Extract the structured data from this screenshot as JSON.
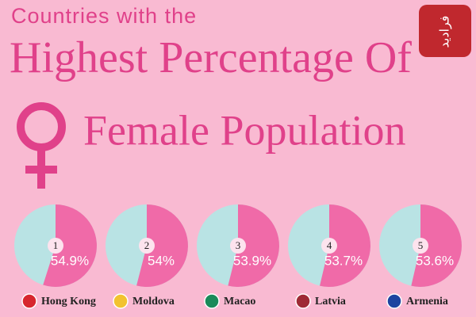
{
  "header": {
    "line1": "Countries with the",
    "line2": "Highest Percentage Of",
    "line3": "Female Population",
    "watermark": "فرادید"
  },
  "chart_data": [
    {
      "type": "pie",
      "rank": 1,
      "country": "Hong Kong",
      "values": [
        54.9
      ],
      "value_labels": [
        "54.9%"
      ],
      "color": "#f06aa8",
      "rest_color": "#b9e3e4",
      "flag_color": "#d7262e"
    },
    {
      "type": "pie",
      "rank": 2,
      "country": "Moldova",
      "values": [
        54
      ],
      "value_labels": [
        "54%"
      ],
      "color": "#f06aa8",
      "rest_color": "#b9e3e4",
      "flag_color": "#f2c230"
    },
    {
      "type": "pie",
      "rank": 3,
      "country": "Macao",
      "values": [
        53.9
      ],
      "value_labels": [
        "53.9%"
      ],
      "color": "#f06aa8",
      "rest_color": "#b9e3e4",
      "flag_color": "#1a8a5a"
    },
    {
      "type": "pie",
      "rank": 4,
      "country": "Latvia",
      "values": [
        53.7
      ],
      "value_labels": [
        "53.7%"
      ],
      "color": "#f06aa8",
      "rest_color": "#b9e3e4",
      "flag_color": "#9e2a35"
    },
    {
      "type": "pie",
      "rank": 5,
      "country": "Armenia",
      "values": [
        53.6
      ],
      "value_labels": [
        "53.6%"
      ],
      "color": "#f06aa8",
      "rest_color": "#b9e3e4",
      "flag_color": "#1d44a0"
    }
  ]
}
